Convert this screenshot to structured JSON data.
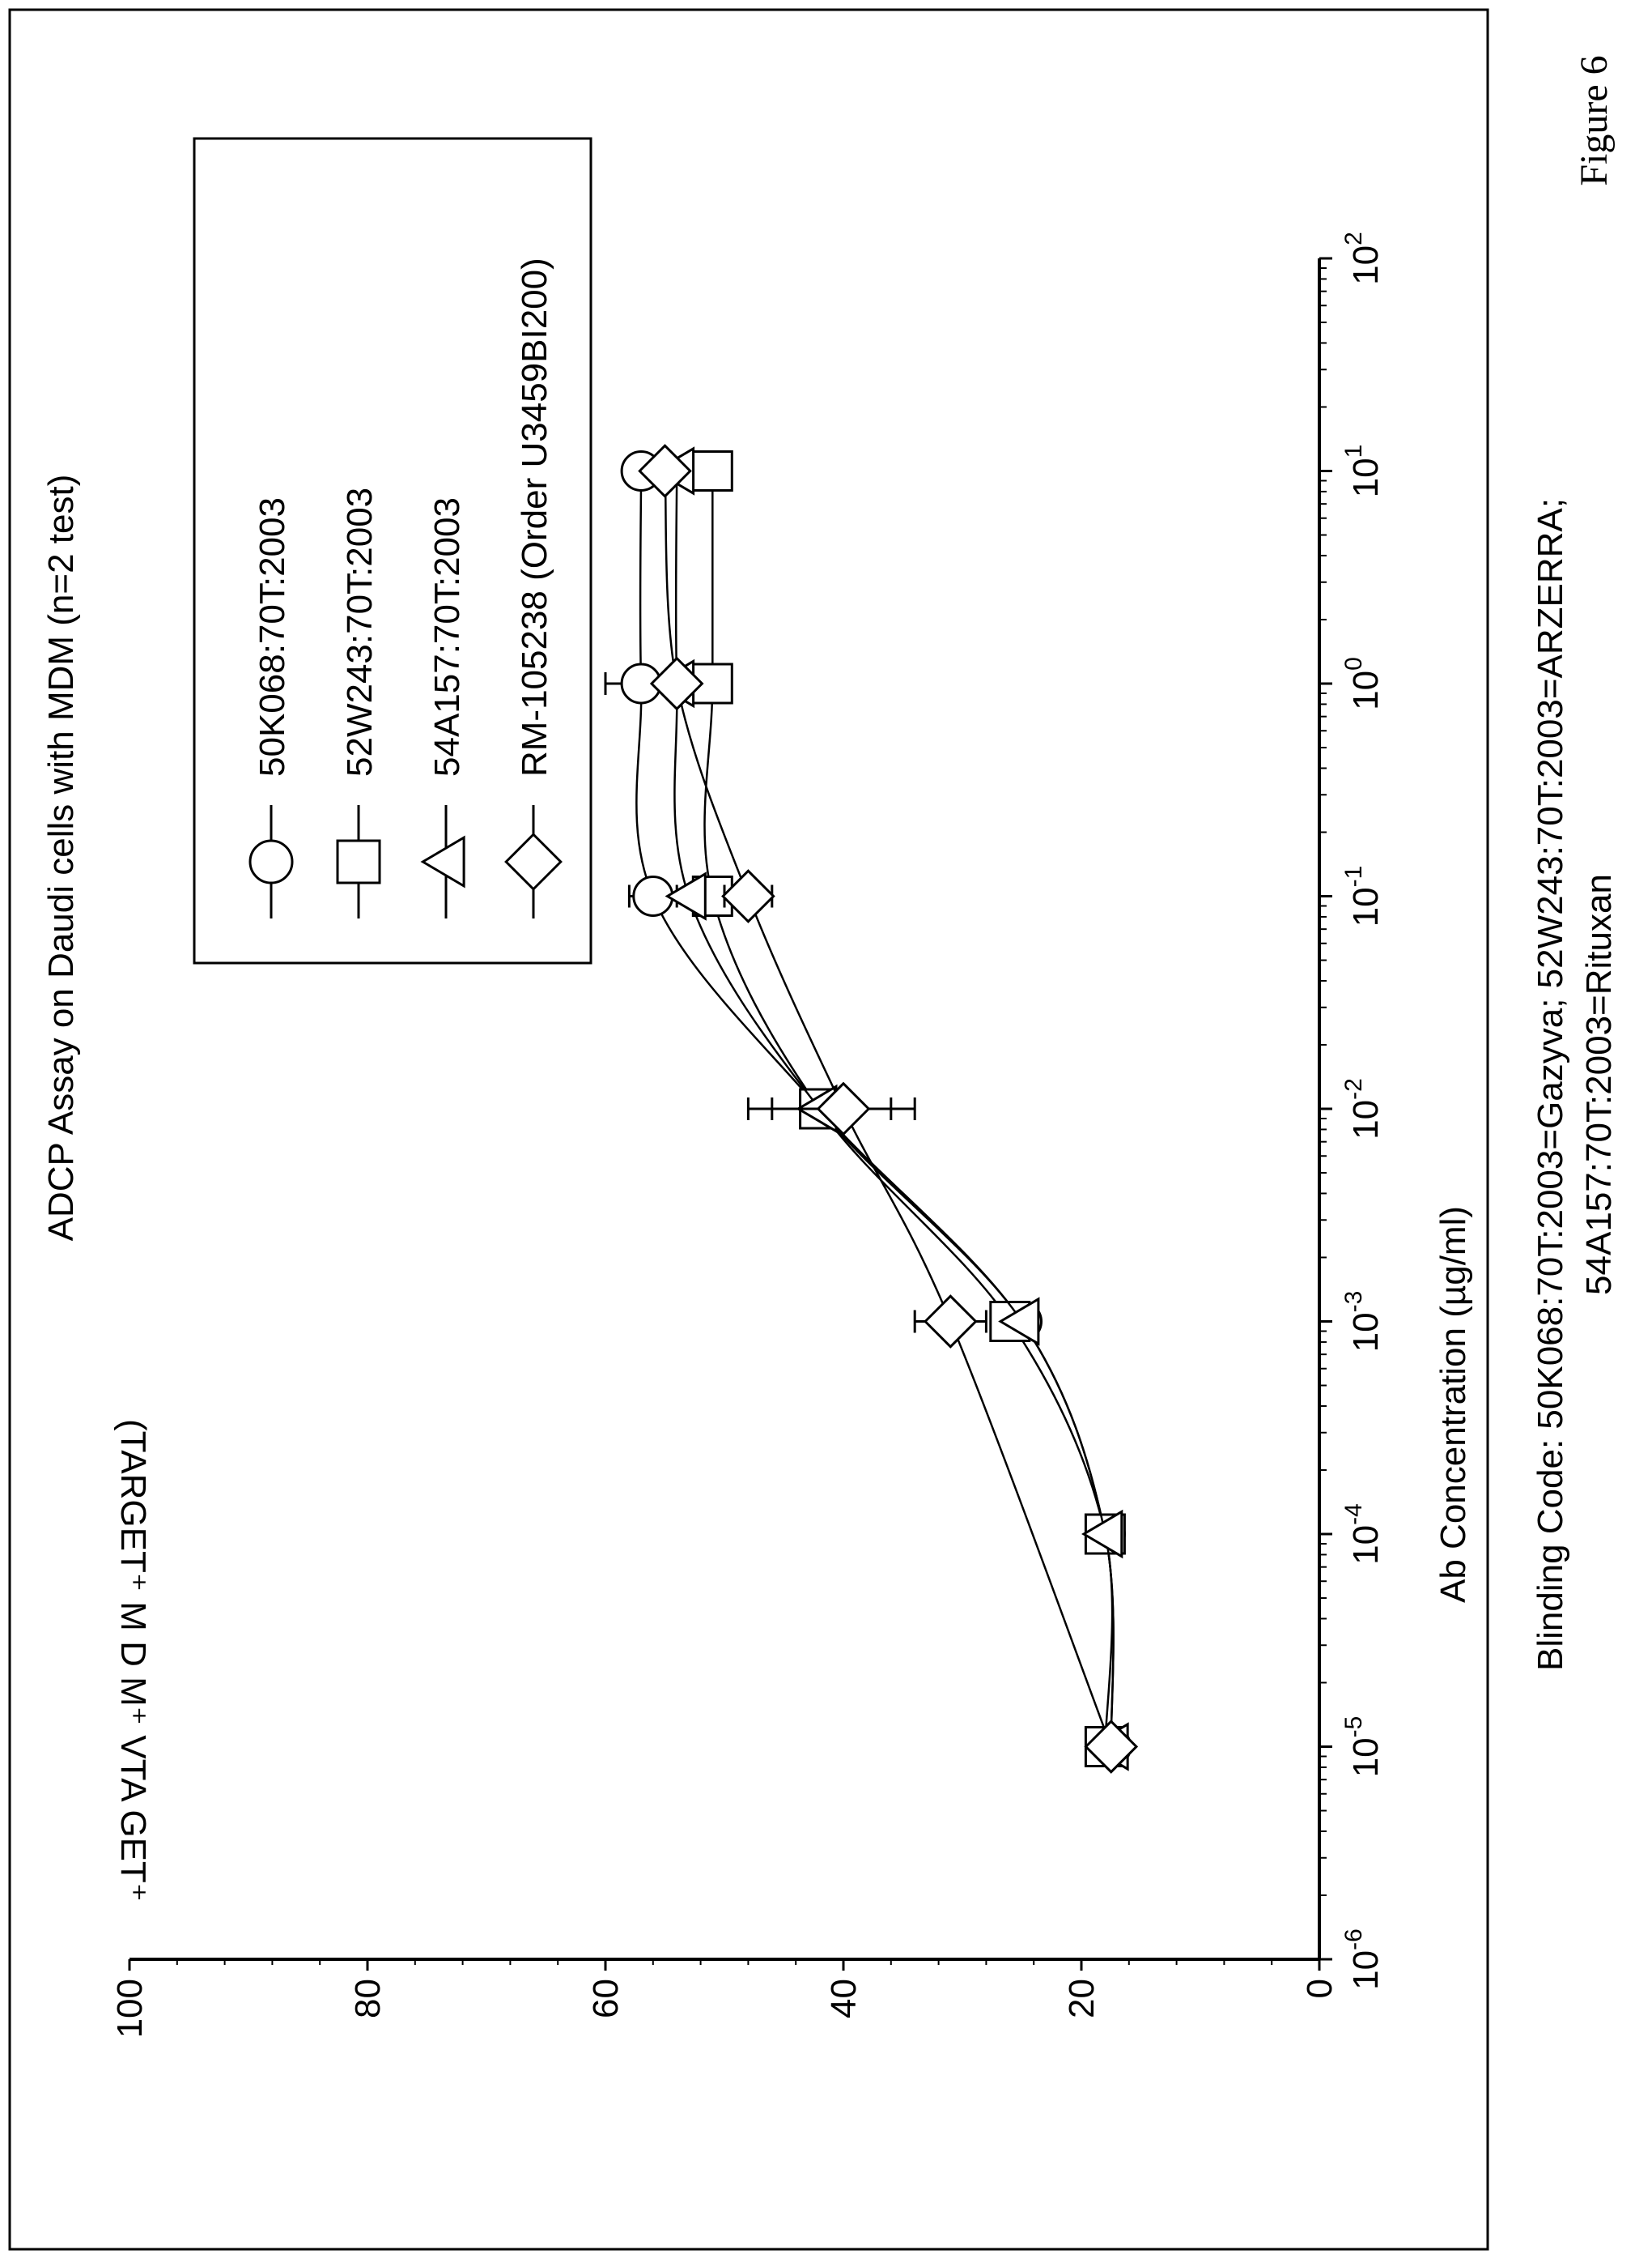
{
  "figure_label": "Figure 6",
  "caption": {
    "line1": "Blinding Code: 50K068:70T:2003=Gazyva; 52W243:70T:2003=ARZERRA;",
    "line2": "54A157:70T:2003=Rituxan"
  },
  "chart_data": {
    "type": "line",
    "title": "ADCP Assay on Daudi cells with MDM (n=2 test)",
    "xlabel": "Ab Concentration (µg/ml)",
    "ylabel": "(TARGET⁺ M D M⁺ VTA GET⁺",
    "x_scale": "log",
    "xlim": [
      1e-06,
      100
    ],
    "ylim": [
      0,
      100
    ],
    "y_ticks": [
      0,
      20,
      40,
      60,
      80,
      100
    ],
    "x_ticks": [
      {
        "value": 1e-06,
        "base": "10",
        "exp": "-6"
      },
      {
        "value": 1e-05,
        "base": "10",
        "exp": "-5"
      },
      {
        "value": 0.0001,
        "base": "10",
        "exp": "-4"
      },
      {
        "value": 0.001,
        "base": "10",
        "exp": "-3"
      },
      {
        "value": 0.01,
        "base": "10",
        "exp": "-2"
      },
      {
        "value": 0.1,
        "base": "10",
        "exp": "-1"
      },
      {
        "value": 1,
        "base": "10",
        "exp": "0"
      },
      {
        "value": 10,
        "base": "10",
        "exp": "1"
      },
      {
        "value": 100,
        "base": "10",
        "exp": "2"
      }
    ],
    "legend_position": "top-left",
    "series": [
      {
        "name": "50K068:70T:2003",
        "marker": "circle",
        "x": [
          1e-05,
          0.0001,
          0.001,
          0.01,
          0.1,
          1,
          10
        ],
        "y": [
          17.5,
          18,
          25,
          42,
          56,
          57,
          57
        ],
        "err": [
          0,
          0,
          0,
          6,
          2,
          3,
          0
        ]
      },
      {
        "name": "52W243:70T:2003",
        "marker": "square",
        "x": [
          1e-05,
          0.0001,
          0.001,
          0.01,
          0.1,
          1,
          10
        ],
        "y": [
          18,
          18,
          26,
          42,
          51,
          51,
          51
        ],
        "err": [
          0,
          0,
          0,
          0,
          0,
          0,
          1
        ]
      },
      {
        "name": "54A157:70T:2003",
        "marker": "triangle",
        "x": [
          1e-05,
          0.0001,
          0.001,
          0.01,
          0.1,
          1,
          10
        ],
        "y": [
          17.5,
          18,
          25,
          42,
          53,
          54,
          54
        ],
        "err": [
          0,
          0,
          0,
          0,
          0,
          0,
          0
        ]
      },
      {
        "name": "RM-105238 (Order U3459BI200)",
        "marker": "diamond",
        "x": [
          1e-05,
          0.001,
          0.01,
          0.1,
          1,
          10
        ],
        "y": [
          17.5,
          31,
          40,
          48,
          54,
          55
        ],
        "err": [
          0,
          3,
          6,
          2,
          0,
          0
        ]
      }
    ]
  }
}
